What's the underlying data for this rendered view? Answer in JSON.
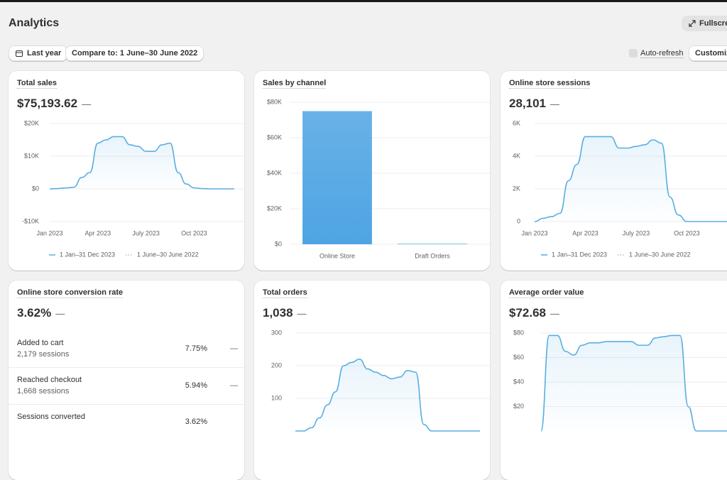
{
  "header": {
    "title": "Analytics",
    "fullscreen": "Fullscreen"
  },
  "toolbar": {
    "date_range": "Last year",
    "compare": "Compare to: 1 June–30 June 2022",
    "auto_refresh": "Auto-refresh",
    "customize": "Customize"
  },
  "chart_data": [
    {
      "type": "line",
      "title": "Total sales",
      "summary": "$75,193.62",
      "change": "—",
      "categories": [
        "Jan 2023",
        null,
        null,
        null,
        null,
        null,
        "Apr 2023",
        null,
        null,
        null,
        null,
        null,
        "July 2023",
        null,
        null,
        null,
        null,
        null,
        "Oct 2023",
        null,
        null,
        null,
        null,
        null
      ],
      "series": [
        {
          "name": "1 Jan–31 Dec 2023",
          "color": "#5aaee3",
          "values": [
            0,
            100,
            300,
            500,
            3500,
            5000,
            14000,
            15000,
            16000,
            16000,
            13500,
            13000,
            11500,
            11500,
            13500,
            14000,
            5000,
            1500,
            300,
            100,
            0,
            0,
            0,
            0
          ]
        }
      ],
      "comparison_name": "1 June–30 June 2022",
      "ylim": [
        -10000,
        20000
      ],
      "yticks": [
        {
          "value": -10000,
          "label": "-$10K"
        },
        {
          "value": 0,
          "label": "$0"
        },
        {
          "value": 10000,
          "label": "$10K"
        },
        {
          "value": 20000,
          "label": "$20K"
        }
      ],
      "grid": true
    },
    {
      "type": "bar",
      "title": "Sales by channel",
      "categories": [
        "Online Store",
        "Draft Orders"
      ],
      "values": [
        75000,
        300
      ],
      "color": "#4ea4e3",
      "ylim": [
        0,
        80000
      ],
      "yticks": [
        {
          "value": 0,
          "label": "$0"
        },
        {
          "value": 20000,
          "label": "$20K"
        },
        {
          "value": 40000,
          "label": "$40K"
        },
        {
          "value": 60000,
          "label": "$60K"
        },
        {
          "value": 80000,
          "label": "$80K"
        }
      ],
      "grid": true
    },
    {
      "type": "line",
      "title": "Online store sessions",
      "summary": "28,101",
      "change": "—",
      "categories": [
        "Jan 2023",
        null,
        null,
        null,
        null,
        null,
        "Apr 2023",
        null,
        null,
        null,
        null,
        null,
        "July 2023",
        null,
        null,
        null,
        null,
        null,
        "Oct 2023",
        null,
        null,
        null,
        null,
        null
      ],
      "series": [
        {
          "name": "1 Jan–31 Dec 2023",
          "color": "#5aaee3",
          "values": [
            0,
            200,
            300,
            500,
            2500,
            3500,
            5200,
            5200,
            5200,
            5200,
            4500,
            4500,
            4600,
            4700,
            5000,
            4800,
            1500,
            400,
            0,
            0,
            0,
            0,
            0,
            0
          ]
        }
      ],
      "comparison_name": "1 June–30 June 2022",
      "ylim": [
        0,
        6000
      ],
      "yticks": [
        0,
        {
          "value": 2000,
          "label": "2K"
        },
        {
          "value": 4000,
          "label": "4K"
        },
        {
          "value": 6000,
          "label": "6K"
        }
      ],
      "grid": true
    },
    {
      "type": "line",
      "title": "Total orders",
      "summary": "1,038",
      "change": "—",
      "series": [
        {
          "name": "1 Jan–31 Dec 2023",
          "color": "#5aaee3",
          "values": [
            0,
            0,
            10,
            40,
            80,
            120,
            200,
            210,
            220,
            190,
            180,
            170,
            160,
            165,
            185,
            180,
            20,
            0,
            0,
            0,
            0,
            0,
            0,
            0
          ]
        }
      ],
      "ylim": [
        0,
        300
      ],
      "yticks": [
        100,
        200,
        300
      ],
      "grid": true
    },
    {
      "type": "line",
      "title": "Average order value",
      "summary": "$72.68",
      "change": "—",
      "series": [
        {
          "name": "1 Jan–31 Dec 2023",
          "color": "#5aaee3",
          "values": [
            0,
            78,
            78,
            65,
            62,
            70,
            72,
            72,
            73,
            73,
            73,
            73,
            70,
            70,
            76,
            77,
            78,
            78,
            20,
            0,
            0,
            0,
            0,
            0
          ]
        }
      ],
      "ylim": [
        0,
        80
      ],
      "yticks": [
        {
          "value": 20,
          "label": "$20"
        },
        {
          "value": 40,
          "label": "$40"
        },
        {
          "value": 60,
          "label": "$60"
        },
        {
          "value": 80,
          "label": "$80"
        }
      ],
      "grid": true
    }
  ],
  "conversion_card": {
    "title": "Online store conversion rate",
    "summary": "3.62%",
    "change": "—",
    "rows": [
      {
        "label": "Added to cart",
        "sessions": "2,179 sessions",
        "rate": "7.75%",
        "change": "—"
      },
      {
        "label": "Reached checkout",
        "sessions": "1,668 sessions",
        "rate": "5.94%",
        "change": "—"
      },
      {
        "label": "Sessions converted",
        "rate": "3.62%"
      }
    ]
  }
}
